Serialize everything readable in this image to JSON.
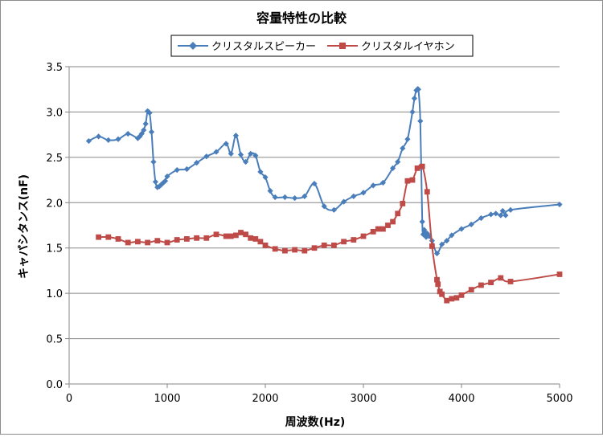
{
  "chart_data": {
    "type": "line",
    "title": "容量特性の比較",
    "xlabel": "周波数(Hz)",
    "ylabel": "キャパシタンス(nF)",
    "xlim": [
      0,
      5000
    ],
    "ylim": [
      0,
      3.5
    ],
    "x_ticks": [
      "0",
      "1000",
      "2000",
      "3000",
      "4000",
      "5000"
    ],
    "y_ticks": [
      "0.0",
      "0.5",
      "1.0",
      "1.5",
      "2.0",
      "2.5",
      "3.0",
      "3.5"
    ],
    "grid": "horizontal",
    "legend_position": "top",
    "series": [
      {
        "name": "クリスタルスピーカー",
        "color": "#4a7ebb",
        "marker": "diamond",
        "x": [
          200,
          300,
          400,
          500,
          600,
          700,
          720,
          740,
          760,
          780,
          800,
          820,
          840,
          860,
          880,
          900,
          920,
          940,
          960,
          980,
          1000,
          1100,
          1200,
          1300,
          1400,
          1500,
          1600,
          1650,
          1700,
          1750,
          1800,
          1850,
          1900,
          1950,
          2000,
          2050,
          2100,
          2200,
          2300,
          2400,
          2500,
          2600,
          2700,
          2800,
          2900,
          3000,
          3100,
          3200,
          3300,
          3350,
          3400,
          3450,
          3500,
          3520,
          3540,
          3560,
          3580,
          3600,
          3610,
          3620,
          3630,
          3640,
          3650,
          3670,
          3700,
          3750,
          3800,
          3850,
          3900,
          4000,
          4100,
          4200,
          4300,
          4350,
          4400,
          4420,
          4450,
          4500,
          5000
        ],
        "values": [
          2.68,
          2.73,
          2.69,
          2.7,
          2.76,
          2.71,
          2.73,
          2.76,
          2.8,
          2.87,
          3.01,
          2.99,
          2.78,
          2.45,
          2.23,
          2.17,
          2.18,
          2.2,
          2.22,
          2.24,
          2.29,
          2.36,
          2.37,
          2.44,
          2.51,
          2.56,
          2.65,
          2.54,
          2.74,
          2.53,
          2.45,
          2.54,
          2.52,
          2.34,
          2.28,
          2.13,
          2.06,
          2.06,
          2.05,
          2.07,
          2.21,
          1.96,
          1.92,
          2.01,
          2.07,
          2.11,
          2.19,
          2.22,
          2.38,
          2.45,
          2.6,
          2.7,
          3.0,
          3.15,
          3.24,
          3.25,
          2.9,
          1.79,
          1.65,
          1.7,
          1.67,
          1.62,
          1.66,
          1.63,
          1.58,
          1.44,
          1.54,
          1.58,
          1.64,
          1.71,
          1.76,
          1.83,
          1.87,
          1.88,
          1.86,
          1.91,
          1.86,
          1.92,
          1.98
        ]
      },
      {
        "name": "クリスタルイヤホン",
        "color": "#be4b48",
        "marker": "square",
        "x": [
          300,
          400,
          500,
          600,
          700,
          800,
          900,
          1000,
          1100,
          1200,
          1300,
          1400,
          1500,
          1600,
          1650,
          1700,
          1750,
          1800,
          1850,
          1900,
          1950,
          2000,
          2100,
          2200,
          2300,
          2400,
          2500,
          2600,
          2700,
          2800,
          2900,
          3000,
          3100,
          3150,
          3200,
          3250,
          3300,
          3350,
          3400,
          3450,
          3500,
          3550,
          3600,
          3650,
          3700,
          3750,
          3760,
          3780,
          3800,
          3850,
          3900,
          3950,
          4000,
          4100,
          4200,
          4300,
          4400,
          4500,
          5000
        ],
        "values": [
          1.62,
          1.62,
          1.6,
          1.56,
          1.57,
          1.56,
          1.58,
          1.56,
          1.59,
          1.6,
          1.61,
          1.61,
          1.65,
          1.63,
          1.63,
          1.64,
          1.67,
          1.65,
          1.61,
          1.6,
          1.57,
          1.53,
          1.49,
          1.47,
          1.48,
          1.47,
          1.5,
          1.53,
          1.53,
          1.57,
          1.59,
          1.63,
          1.68,
          1.71,
          1.71,
          1.75,
          1.79,
          1.88,
          1.99,
          2.24,
          2.25,
          2.38,
          2.4,
          2.12,
          1.52,
          1.15,
          1.1,
          1.02,
          0.99,
          0.92,
          0.94,
          0.95,
          0.98,
          1.04,
          1.09,
          1.12,
          1.17,
          1.13,
          1.21
        ]
      }
    ]
  }
}
